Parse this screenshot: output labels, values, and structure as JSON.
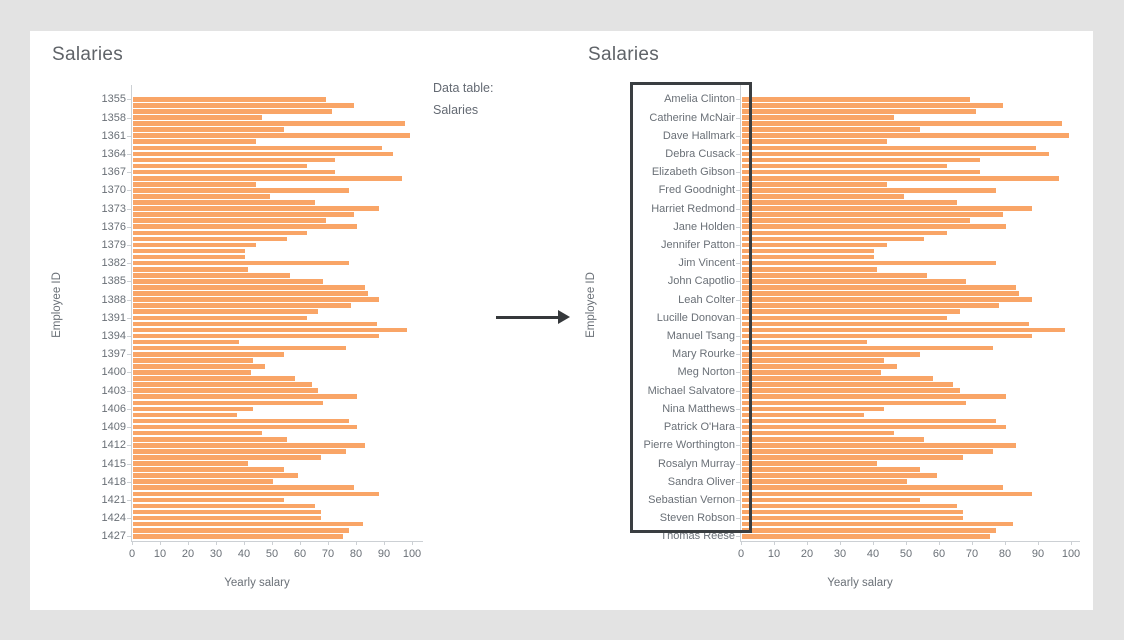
{
  "page": {
    "background_color": "#e3e3e3",
    "card_color": "#ffffff"
  },
  "annotation": {
    "data_table_label": "Data table:",
    "data_table_value": "Salaries",
    "arrow_icon": "right-arrow",
    "arrow_color": "#35383b",
    "highlight_box_color": "#3a3e41"
  },
  "chart_data": {
    "type": "bar",
    "orientation": "horizontal",
    "layout": "two identical side-by-side bar charts; left uses employee IDs as y tick labels, right uses employee names; names column outlined with a black box; y tick labels shown for every 3rd bar",
    "title": "Salaries",
    "xlabel": "Yearly salary",
    "ylabel": "Employee ID",
    "xlim": [
      0,
      100
    ],
    "xticks": [
      0,
      10,
      20,
      30,
      40,
      50,
      60,
      70,
      80,
      90,
      100
    ],
    "bar_color": "#f9a567",
    "axis_color": "#ccd0d4",
    "tick_label_every": 3,
    "left_tick_labels": [
      "1355",
      "1358",
      "1361",
      "1364",
      "1367",
      "1370",
      "1373",
      "1376",
      "1379",
      "1382",
      "1385",
      "1388",
      "1391",
      "1394",
      "1397",
      "1400",
      "1403",
      "1406",
      "1409",
      "1412",
      "1415",
      "1418",
      "1421",
      "1424",
      "1427"
    ],
    "right_tick_labels": [
      "Amelia Clinton",
      "Catherine McNair",
      "Dave Hallmark",
      "Debra Cusack",
      "Elizabeth Gibson",
      "Fred Goodnight",
      "Harriet Redmond",
      "Jane Holden",
      "Jennifer Patton",
      "Jim Vincent",
      "John Capotlio",
      "Leah Colter",
      "Lucille Donovan",
      "Manuel Tsang",
      "Mary Rourke",
      "Meg Norton",
      "Michael Salvatore",
      "Nina Matthews",
      "Patrick O'Hara",
      "Pierre Worthington",
      "Rosalyn Murray",
      "Sandra Oliver",
      "Sebastian Vernon",
      "Steven Robson",
      "Thomas Reese"
    ],
    "values": [
      69,
      79,
      71,
      46,
      97,
      54,
      99,
      44,
      89,
      93,
      72,
      62,
      72,
      96,
      44,
      77,
      49,
      65,
      88,
      79,
      69,
      80,
      62,
      55,
      44,
      40,
      40,
      77,
      41,
      56,
      68,
      83,
      84,
      88,
      78,
      66,
      62,
      87,
      98,
      88,
      38,
      76,
      54,
      43,
      47,
      42,
      58,
      64,
      66,
      80,
      68,
      43,
      37,
      77,
      80,
      46,
      55,
      83,
      76,
      67,
      41,
      54,
      59,
      50,
      79,
      88,
      54,
      65,
      67,
      67,
      82,
      77,
      75
    ]
  }
}
